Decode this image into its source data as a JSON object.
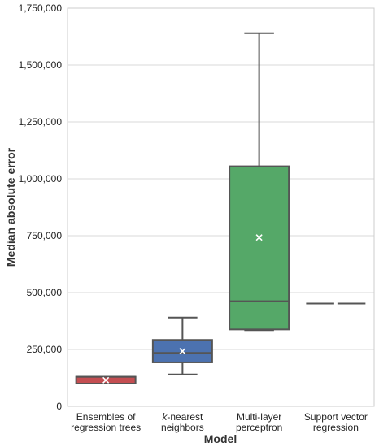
{
  "chart_data": {
    "type": "box",
    "xlabel": "Model",
    "ylabel": "Median absolute error",
    "ylim": [
      0,
      1750000
    ],
    "yticks": [
      0,
      250000,
      500000,
      750000,
      1000000,
      1250000,
      1500000,
      1750000
    ],
    "ytick_labels": [
      "0",
      "250,000",
      "500,000",
      "750,000",
      "1,000,000",
      "1,250,000",
      "1,500,000",
      "1,750,000"
    ],
    "grid": true,
    "categories": [
      {
        "lines": [
          "Ensembles of",
          "regression trees"
        ],
        "italic_prefix": ""
      },
      {
        "lines": [
          "k-nearest",
          "neighbors"
        ],
        "italic_prefix": "k"
      },
      {
        "lines": [
          "Multi-layer",
          "perceptron"
        ],
        "italic_prefix": ""
      },
      {
        "lines": [
          "Support vector",
          "regression"
        ],
        "italic_prefix": ""
      }
    ],
    "boxes": [
      {
        "whisker_low": 100000,
        "q1": 100000,
        "median": 130000,
        "q3": 130000,
        "whisker_high": 130000,
        "mean": 115000,
        "color": "#c44e52"
      },
      {
        "whisker_low": 140000,
        "q1": 193000,
        "median": 235000,
        "q3": 292000,
        "whisker_high": 390000,
        "mean": 242000,
        "color": "#4c72b0"
      },
      {
        "whisker_low": 335000,
        "q1": 338000,
        "median": 462000,
        "q3": 1055000,
        "whisker_high": 1640000,
        "mean": 742000,
        "color": "#55a868"
      },
      {
        "whisker_low": 452000,
        "q1": 452000,
        "median": 452000,
        "q3": 452000,
        "whisker_high": 452000,
        "mean": null,
        "color": "#8172b2"
      }
    ],
    "mean_marker": "x",
    "line_color": "#555555",
    "grid_color": "#d9d9d9"
  }
}
